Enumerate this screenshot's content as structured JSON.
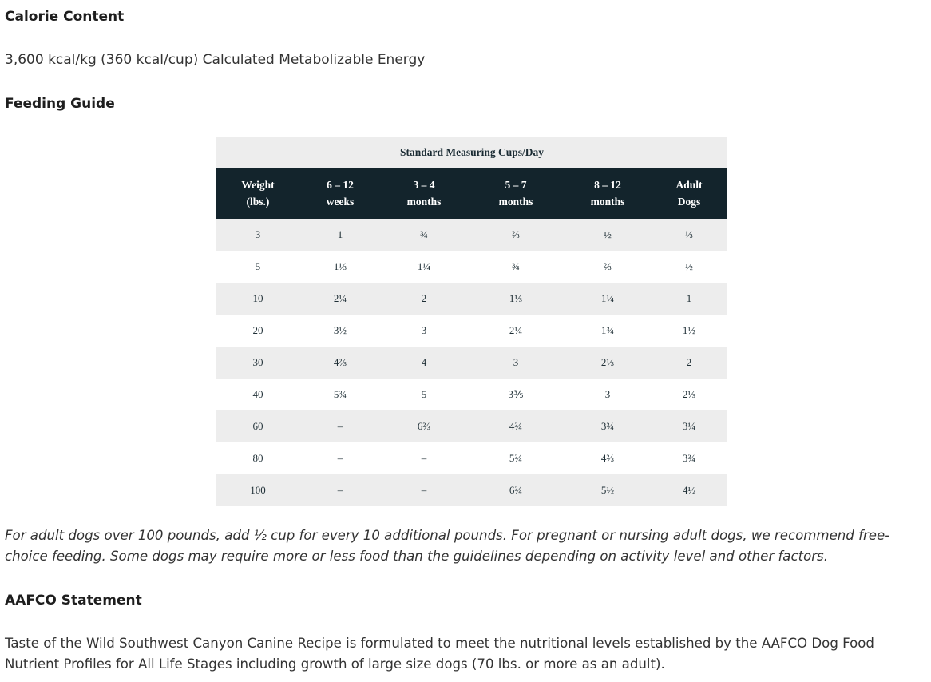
{
  "calorie": {
    "heading": "Calorie Content",
    "text": "3,600 kcal/kg (360 kcal/cup) Calculated Metabolizable Energy"
  },
  "feeding": {
    "heading": "Feeding Guide",
    "table": {
      "title": "Standard Measuring Cups/Day",
      "headers": [
        {
          "line1": "Weight",
          "line2": "(lbs.)"
        },
        {
          "line1": "6 – 12",
          "line2": "weeks"
        },
        {
          "line1": "3 – 4",
          "line2": "months"
        },
        {
          "line1": "5 – 7",
          "line2": "months"
        },
        {
          "line1": "8 – 12",
          "line2": "months"
        },
        {
          "line1": "Adult",
          "line2": "Dogs"
        }
      ],
      "rows": [
        [
          "3",
          "1",
          "¾",
          "⅔",
          "½",
          "⅓"
        ],
        [
          "5",
          "1⅓",
          "1¼",
          "¾",
          "⅔",
          "½"
        ],
        [
          "10",
          "2¼",
          "2",
          "1⅓",
          "1¼",
          "1"
        ],
        [
          "20",
          "3½",
          "3",
          "2¼",
          "1¾",
          "1½"
        ],
        [
          "30",
          "4⅔",
          "4",
          "3",
          "2⅓",
          "2"
        ],
        [
          "40",
          "5¾",
          "5",
          "3⅗",
          "3",
          "2⅓"
        ],
        [
          "60",
          "–",
          "6⅔",
          "4¾",
          "3¾",
          "3¼"
        ],
        [
          "80",
          "–",
          "–",
          "5¾",
          "4⅔",
          "3¾"
        ],
        [
          "100",
          "–",
          "–",
          "6¾",
          "5½",
          "4½"
        ]
      ]
    },
    "footnote": "For adult dogs over 100 pounds, add ½ cup for every 10 additional pounds. For pregnant or nursing adult dogs, we recommend free-choice feeding. Some dogs may require more or less food than the guidelines depending on activity level and other factors."
  },
  "aafco": {
    "heading": "AAFCO Statement",
    "text": "Taste of the Wild Southwest Canyon Canine Recipe is formulated to meet the nutritional levels established by the AAFCO Dog Food Nutrient Profiles for All Life Stages including growth of large size dogs (70 lbs. or more as an adult)."
  }
}
